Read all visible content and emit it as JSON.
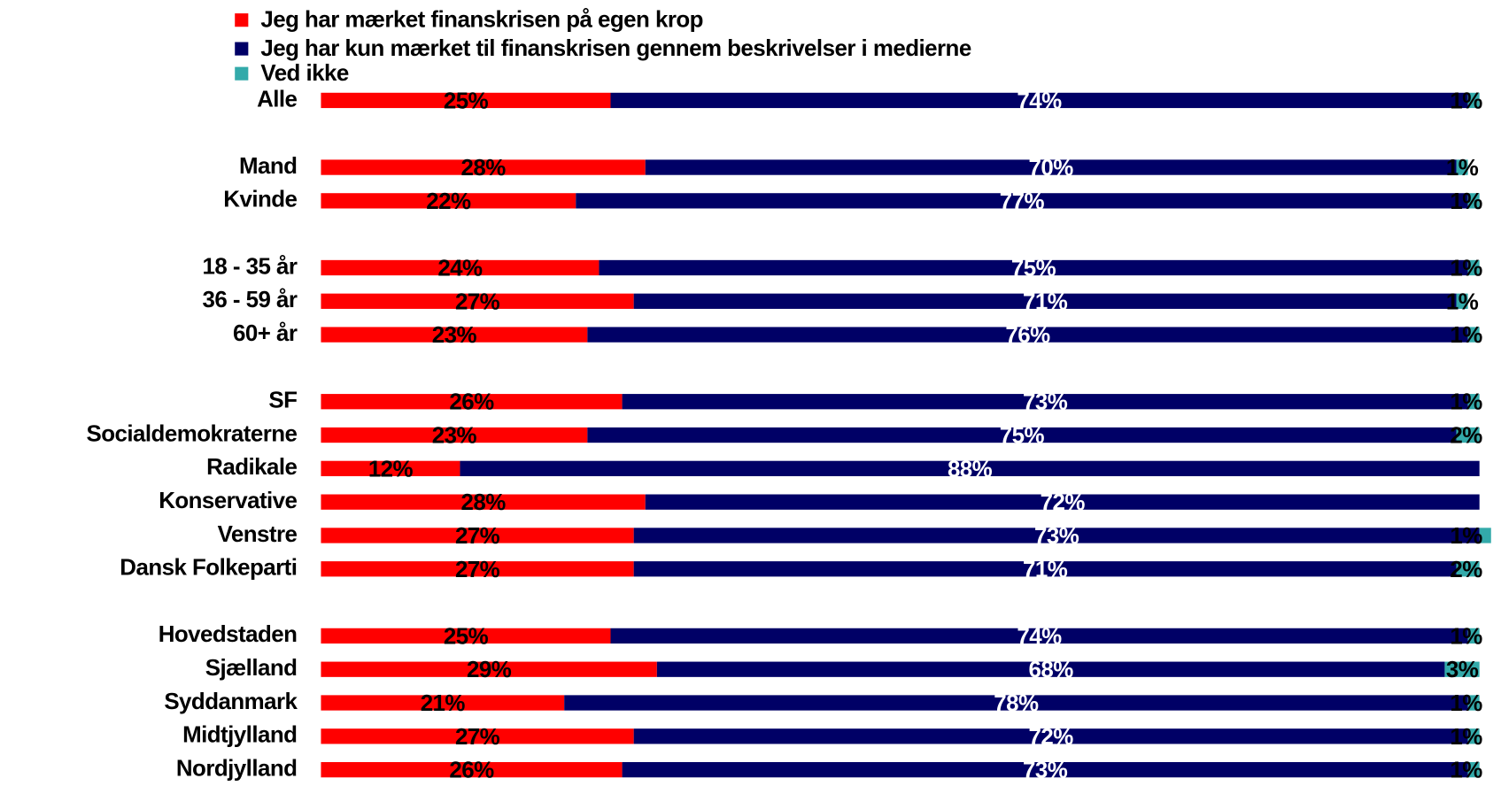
{
  "chart_data": {
    "type": "stacked-bar-horizontal",
    "categories": [
      "Alle",
      null,
      "Mand",
      "Kvinde",
      null,
      "18 - 35 år",
      "36 - 59 år",
      "60+ år",
      null,
      "SF",
      "Socialdemokraterne",
      "Radikale",
      "Konservative",
      "Venstre",
      "Dansk Folkeparti",
      null,
      "Hovedstaden",
      "Sjælland",
      "Syddanmark",
      "Midtjylland",
      "Nordjylland"
    ],
    "xlim": [
      0,
      100
    ],
    "series": [
      {
        "name": "Jeg har mærket finanskrisen på egen krop",
        "color": "#ff0000",
        "values": [
          25,
          null,
          28,
          22,
          null,
          24,
          27,
          23,
          null,
          26,
          23,
          12,
          28,
          27,
          27,
          null,
          25,
          29,
          21,
          27,
          26
        ],
        "value_labels": [
          "25%",
          null,
          "28%",
          "22%",
          null,
          "24%",
          "27%",
          "23%",
          null,
          "26%",
          "23%",
          "12%",
          "28%",
          "27%",
          "27%",
          null,
          "25%",
          "29%",
          "21%",
          "27%",
          "26%"
        ]
      },
      {
        "name": "Jeg har kun mærket til finanskrisen gennem beskrivelser i medierne",
        "color": "#000066",
        "values": [
          74,
          null,
          70,
          77,
          null,
          75,
          71,
          76,
          null,
          73,
          75,
          88,
          72,
          73,
          71,
          null,
          74,
          68,
          78,
          72,
          73
        ],
        "value_labels": [
          "74%",
          null,
          "70%",
          "77%",
          null,
          "75%",
          "71%",
          "76%",
          null,
          "73%",
          "75%",
          "88%",
          "72%",
          "73%",
          "71%",
          null,
          "74%",
          "68%",
          "78%",
          "72%",
          "73%"
        ]
      },
      {
        "name": "Ved ikke",
        "color": "#33aaaa",
        "values": [
          1,
          null,
          1,
          1,
          null,
          1,
          1,
          1,
          null,
          1,
          2,
          null,
          null,
          1,
          2,
          null,
          1,
          3,
          1,
          1,
          1
        ],
        "value_labels": [
          "1%",
          null,
          "1%",
          "1%",
          null,
          "1%",
          "1%",
          "1%",
          null,
          "1%",
          "2%",
          null,
          null,
          "1%",
          "2%",
          null,
          "1%",
          "3%",
          "1%",
          "1%",
          "1%"
        ]
      }
    ]
  }
}
